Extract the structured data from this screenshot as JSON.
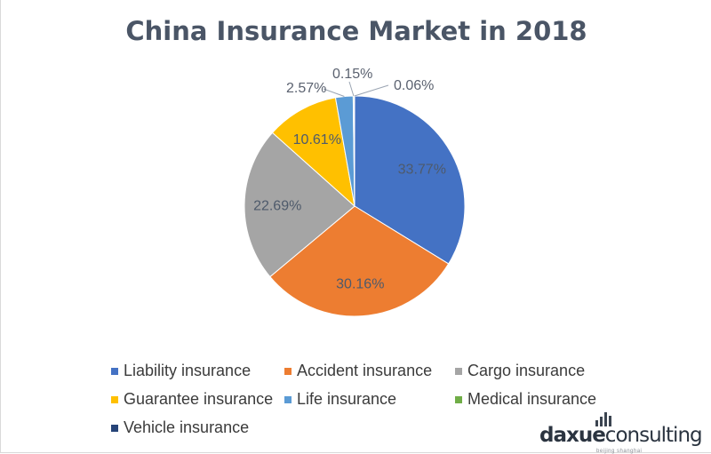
{
  "chart_data": {
    "type": "pie",
    "title": "China Insurance Market in 2018",
    "categories": [
      "Liability insurance",
      "Accident insurance",
      "Cargo insurance",
      "Guarantee insurance",
      "Life insurance",
      "Medical insurance",
      "Vehicle insurance"
    ],
    "values": [
      33.77,
      30.16,
      22.69,
      10.61,
      2.57,
      0.15,
      0.06
    ],
    "labels": [
      "33.77%",
      "30.16%",
      "22.69%",
      "10.61%",
      "2.57%",
      "0.15%",
      "0.06%"
    ],
    "colors": [
      "#4472c4",
      "#ed7d31",
      "#a5a5a5",
      "#ffc000",
      "#5b9bd5",
      "#70ad47",
      "#264478"
    ],
    "legend_position": "bottom",
    "start_angle_deg": 0,
    "direction": "clockwise"
  },
  "logo": {
    "bold": "daxue",
    "light": "consulting",
    "sub": "beijing shanghai"
  }
}
